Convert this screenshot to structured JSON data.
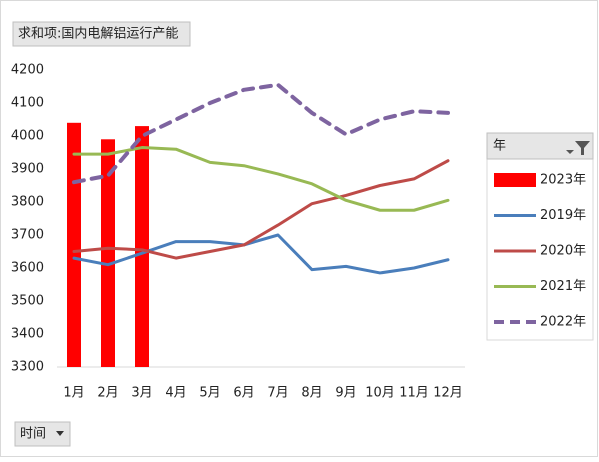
{
  "chart_data": {
    "type": "combo",
    "field_button": "求和项:国内电解铝运行产能",
    "legend_title": "年",
    "axis_button": "时间",
    "categories": [
      "1月",
      "2月",
      "3月",
      "4月",
      "5月",
      "6月",
      "7月",
      "8月",
      "9月",
      "10月",
      "11月",
      "12月"
    ],
    "series": [
      {
        "name": "2023年",
        "type": "bar",
        "color": "#ff0000",
        "values": [
          4040,
          3990,
          4030,
          null,
          null,
          null,
          null,
          null,
          null,
          null,
          null,
          null
        ]
      },
      {
        "name": "2019年",
        "type": "line",
        "color": "#4a7ebb",
        "values": [
          3630,
          3610,
          3645,
          3680,
          3680,
          3670,
          3700,
          3595,
          3605,
          3585,
          3600,
          3625
        ]
      },
      {
        "name": "2020年",
        "type": "line",
        "color": "#be4b48",
        "values": [
          3650,
          3660,
          3655,
          3630,
          3650,
          3670,
          3730,
          3795,
          3820,
          3850,
          3870,
          3925
        ]
      },
      {
        "name": "2021年",
        "type": "line",
        "color": "#98b954",
        "values": [
          3945,
          3945,
          3965,
          3960,
          3920,
          3910,
          3885,
          3855,
          3805,
          3775,
          3775,
          3805
        ]
      },
      {
        "name": "2022年",
        "type": "line",
        "color": "#7e64a0",
        "dashed": true,
        "values": [
          3860,
          3880,
          4000,
          4050,
          4100,
          4140,
          4155,
          4070,
          4005,
          4050,
          4075,
          4070
        ]
      }
    ],
    "ylim": [
      3300,
      4200
    ],
    "yticks": [
      3300,
      3400,
      3500,
      3600,
      3700,
      3800,
      3900,
      4000,
      4100,
      4200
    ],
    "legend": "right"
  }
}
